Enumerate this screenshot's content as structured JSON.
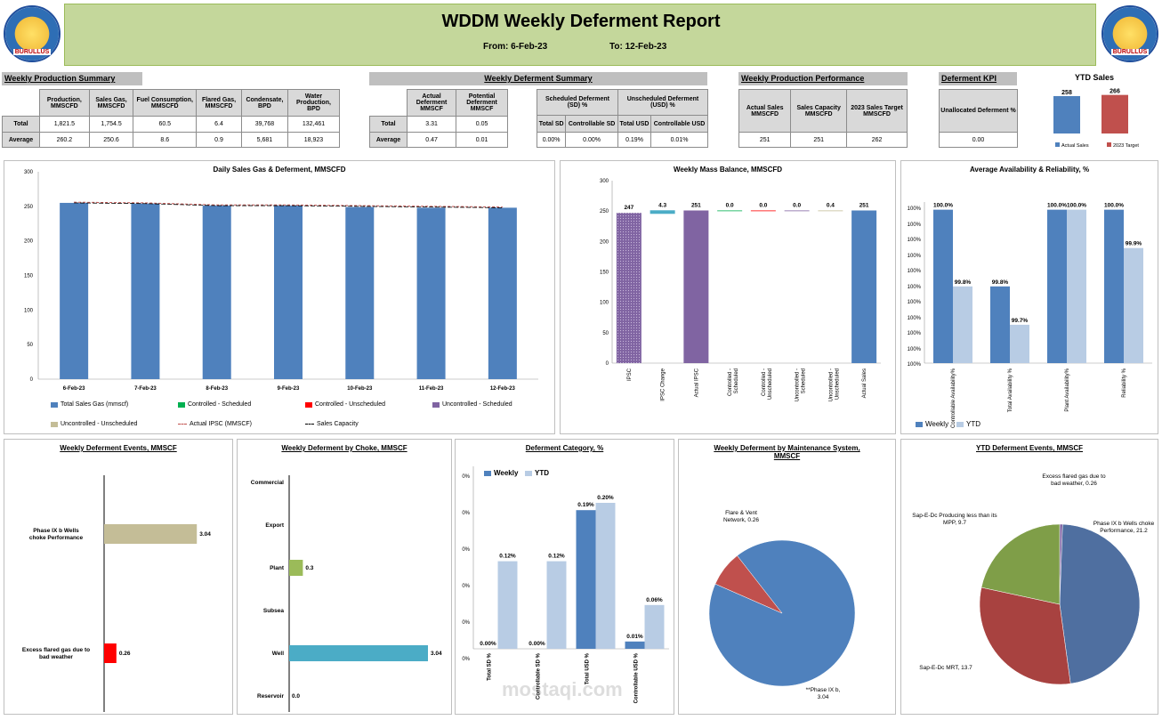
{
  "header": {
    "title": "WDDM Weekly Deferment  Report",
    "from": "From:  6-Feb-23",
    "to": "To:  12-Feb-23",
    "logo_text": "BURULLUS"
  },
  "production_summary": {
    "title": "Weekly Production Summary",
    "columns": [
      "Production, MMSCFD",
      "Sales Gas, MMSCFD",
      "Fuel Consumption, MMSCFD",
      "Flared Gas, MMSCFD",
      "Condensate, BPD",
      "Water Production, BPD"
    ],
    "rows": [
      {
        "label": "Total",
        "values": [
          "1,821.5",
          "1,754.5",
          "60.5",
          "6.4",
          "39,768",
          "132,461"
        ]
      },
      {
        "label": "Average",
        "values": [
          "260.2",
          "250.6",
          "8.6",
          "0.9",
          "5,681",
          "18,923"
        ]
      }
    ]
  },
  "deferment_summary": {
    "title": "Weekly Deferment Summary",
    "col_actual": "Actual Deferment MMSCF",
    "col_potential": "Potential Deferment MMSCF",
    "rows": [
      {
        "label": "Total",
        "actual": "3.31",
        "potential": "0.05"
      },
      {
        "label": "Average",
        "actual": "0.47",
        "potential": "0.01"
      }
    ],
    "sd_title": "Scheduled Deferment (SD) %",
    "usd_title": "Unscheduled Deferment (USD) %",
    "sub": [
      "Total SD",
      "Controllable SD",
      "Total USD",
      "Controllable USD"
    ],
    "sub_values": [
      "0.00%",
      "0.00%",
      "0.19%",
      "0.01%"
    ]
  },
  "performance": {
    "title": "Weekly Production Performance",
    "columns": [
      "Actual Sales MMSCFD",
      "Sales Capacity MMSCFD",
      "2023 Sales Target MMSCFD"
    ],
    "values": [
      "251",
      "251",
      "262"
    ]
  },
  "kpi": {
    "title": "Deferment KPI",
    "label": "Unallocated Deferment %",
    "value": "0.00"
  },
  "ytd_sales": {
    "title": "YTD Sales",
    "legend": [
      "Actual Sales",
      "2023 Target"
    ],
    "colors": [
      "#4f81bd",
      "#c0504d"
    ],
    "values": [
      258,
      266
    ]
  },
  "daily_chart": {
    "title": "Daily Sales Gas & Deferment, MMSCFD",
    "legend": [
      "Total Sales Gas (mmscf)",
      "Controlled - Scheduled",
      "Controlled - Unscheduled",
      "Uncontrolled - Scheduled",
      "Uncontrolled - Unscheduled",
      "Actual IPSC (MMSCF)",
      "Sales Capacity"
    ],
    "colors": [
      "#4f81bd",
      "#00b050",
      "#ff0000",
      "#8064a2",
      "#c4bd97",
      "#c0504d",
      "#000000"
    ]
  },
  "mass_balance": {
    "title": "Weekly Mass Balance, MMSCFD"
  },
  "availability": {
    "title": "Average Availability & Reliability, %",
    "legend": [
      "Weekly",
      "YTD"
    ],
    "y_ticks": [
      "100%",
      "100%",
      "100%",
      "100%",
      "100%",
      "100%",
      "100%",
      "100%",
      "100%",
      "100%",
      "100%"
    ]
  },
  "events": {
    "title": "Weekly Deferment Events, MMSCF"
  },
  "choke": {
    "title": "Weekly Deferment by Choke, MMSCF"
  },
  "category": {
    "title": "Deferment Category, %",
    "legend": [
      "Weekly",
      "YTD"
    ],
    "y_ticks": [
      "0%",
      "0%",
      "0%",
      "0%",
      "0%",
      "0%"
    ]
  },
  "maintenance": {
    "title": "Weekly Deferment by Maintenance System, MMSCF"
  },
  "ytd_events": {
    "title": "YTD Deferment Events, MMSCF"
  },
  "watermark": "mostaqi.com",
  "chart_data": [
    {
      "type": "bar",
      "title": "Daily Sales Gas & Deferment, MMSCFD",
      "categories": [
        "6-Feb-23",
        "7-Feb-23",
        "8-Feb-23",
        "9-Feb-23",
        "10-Feb-23",
        "11-Feb-23",
        "12-Feb-23"
      ],
      "series": [
        {
          "name": "Total Sales Gas (mmscf)",
          "values": [
            255,
            254,
            251,
            251,
            249,
            248,
            248
          ]
        },
        {
          "name": "Actual IPSC (MMSCF)",
          "values": [
            256,
            255,
            252,
            252,
            251,
            250,
            249
          ]
        },
        {
          "name": "Sales Capacity",
          "values": [
            256,
            255,
            252,
            252,
            251,
            250,
            249
          ]
        }
      ],
      "y_ticks": [
        0,
        50,
        100,
        150,
        200,
        250,
        300
      ],
      "ylim": [
        0,
        300
      ]
    },
    {
      "type": "bar",
      "title": "Weekly Mass Balance, MMSCFD",
      "categories": [
        "IPSC",
        "IPSC Change",
        "Actual IPSC",
        "Controlled - Scheduled",
        "Controlled - Unscheduled",
        "Uncontrolled - Scheduled",
        "Uncontrolled - Unscheduled",
        "Actual Sales"
      ],
      "values": [
        247,
        4.3,
        251,
        0.0,
        0.0,
        0.0,
        0.4,
        251
      ],
      "labels": [
        "247",
        "4.3",
        "251",
        "0.0",
        "0.0",
        "0.0",
        "0.4",
        "251"
      ],
      "y_ticks": [
        0,
        50,
        100,
        150,
        200,
        250,
        300
      ],
      "ylim": [
        0,
        300
      ]
    },
    {
      "type": "bar",
      "title": "Average Availability & Reliability, %",
      "categories": [
        "Controllable Availability%",
        "Total Availability %",
        "Plant Availability%",
        "Reliability %"
      ],
      "series": [
        {
          "name": "Weekly",
          "values": [
            100.0,
            99.8,
            100.0,
            100.0
          ],
          "labels": [
            "100.0%",
            "99.8%",
            "100.0%",
            "100.0%"
          ]
        },
        {
          "name": "YTD",
          "values": [
            99.8,
            99.7,
            100.0,
            99.9
          ],
          "labels": [
            "99.8%",
            "99.7%",
            "100.0%",
            "99.9%"
          ]
        }
      ]
    },
    {
      "type": "bar",
      "orientation": "horizontal",
      "title": "Weekly Deferment Events, MMSCF",
      "categories": [
        "Phase IX b Wells  choke Performance",
        "Excess flared gas due to  bad weather"
      ],
      "values": [
        3.04,
        0.26
      ],
      "labels": [
        "3.04",
        "0.26"
      ]
    },
    {
      "type": "bar",
      "orientation": "horizontal",
      "title": "Weekly Deferment by Choke, MMSCF",
      "categories": [
        "Commercial",
        "Export",
        "Plant",
        "Subsea",
        "Well",
        "Reservoir"
      ],
      "values": [
        null,
        null,
        0.3,
        null,
        3.04,
        0.0
      ],
      "labels": [
        "",
        "",
        "0.3",
        "",
        "3.04",
        "0.0"
      ]
    },
    {
      "type": "bar",
      "title": "Deferment Category, %",
      "categories": [
        "Total SD %",
        "Controllable SD %",
        "Total USD %",
        "Controllable USD %"
      ],
      "series": [
        {
          "name": "Weekly",
          "values": [
            0.0,
            0.0,
            0.19,
            0.01
          ],
          "labels": [
            "0.00%",
            "0.00%",
            "0.19%",
            "0.01%"
          ]
        },
        {
          "name": "YTD",
          "values": [
            0.12,
            0.12,
            0.2,
            0.06
          ],
          "labels": [
            "0.12%",
            "0.12%",
            "0.20%",
            "0.06%"
          ]
        }
      ]
    },
    {
      "type": "pie",
      "title": "Weekly Deferment by Maintenance System, MMSCF",
      "slices": [
        {
          "label": "**Phase IX b, 3.04",
          "value": 3.04,
          "color": "#4f81bd"
        },
        {
          "label": "Flare & Vent Network, 0.26",
          "value": 0.26,
          "color": "#c0504d"
        }
      ]
    },
    {
      "type": "pie",
      "title": "YTD Deferment Events, MMSCF",
      "slices": [
        {
          "label": "Excess flared gas due to bad weather, 0.26",
          "value": 0.26,
          "color": "#8064a2"
        },
        {
          "label": "Phase IX b Wells  choke Performance, 21.2",
          "value": 21.2,
          "color": "#4f6fa0"
        },
        {
          "label": "Sap-E-Dc  MRT, 13.7",
          "value": 13.7,
          "color": "#a84240"
        },
        {
          "label": "Sap-E-Dc Producing  less than its MPP, 9.7",
          "value": 9.7,
          "color": "#7f9e48"
        }
      ]
    }
  ]
}
